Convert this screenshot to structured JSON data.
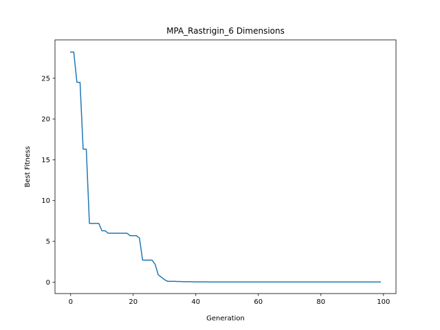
{
  "chart_data": {
    "type": "line",
    "title": "MPA_Rastrigin_6 Dimensions",
    "xlabel": "Generation",
    "ylabel": "Best Fitness",
    "xlim": [
      -5,
      104
    ],
    "ylim": [
      -1.4,
      29.7
    ],
    "xticks": [
      0,
      20,
      40,
      60,
      80,
      100
    ],
    "yticks": [
      0,
      5,
      10,
      15,
      20,
      25
    ],
    "grid": false,
    "series": [
      {
        "color": "#1f77b4",
        "x": [
          0,
          1,
          2,
          3,
          4,
          5,
          6,
          7,
          8,
          9,
          10,
          11,
          12,
          13,
          14,
          15,
          16,
          17,
          18,
          19,
          20,
          21,
          22,
          23,
          24,
          25,
          26,
          27,
          28,
          29,
          30,
          31,
          32,
          33,
          34,
          35,
          36,
          37,
          38,
          39,
          40,
          41,
          42,
          43,
          44,
          45,
          46,
          47,
          48,
          49,
          50,
          51,
          52,
          53,
          54,
          55,
          56,
          57,
          58,
          59,
          60,
          61,
          62,
          63,
          64,
          65,
          66,
          67,
          68,
          69,
          70,
          71,
          72,
          73,
          74,
          75,
          76,
          77,
          78,
          79,
          80,
          81,
          82,
          83,
          84,
          85,
          86,
          87,
          88,
          89,
          90,
          91,
          92,
          93,
          94,
          95,
          96,
          97,
          98,
          99
        ],
        "y": [
          28.2,
          28.2,
          24.5,
          24.5,
          16.3,
          16.3,
          7.2,
          7.2,
          7.2,
          7.2,
          6.3,
          6.3,
          6.0,
          6.0,
          6.0,
          6.0,
          6.0,
          6.0,
          6.0,
          5.7,
          5.7,
          5.7,
          5.4,
          2.7,
          2.7,
          2.7,
          2.7,
          2.2,
          0.9,
          0.6,
          0.3,
          0.1,
          0.1,
          0.1,
          0.08,
          0.08,
          0.05,
          0.05,
          0.05,
          0.04,
          0.03,
          0.03,
          0.03,
          0.03,
          0.02,
          0.02,
          0.02,
          0.02,
          0.02,
          0.02,
          0.02,
          0.02,
          0.02,
          0.02,
          0.02,
          0.02,
          0.02,
          0.02,
          0.02,
          0.02,
          0.02,
          0.02,
          0.02,
          0.02,
          0.02,
          0.02,
          0.02,
          0.02,
          0.02,
          0.02,
          0.02,
          0.02,
          0.02,
          0.02,
          0.02,
          0.02,
          0.02,
          0.02,
          0.02,
          0.02,
          0.02,
          0.02,
          0.02,
          0.02,
          0.02,
          0.02,
          0.02,
          0.02,
          0.02,
          0.02,
          0.02,
          0.02,
          0.02,
          0.02,
          0.02,
          0.02,
          0.02,
          0.02,
          0.02,
          0.02
        ]
      }
    ]
  }
}
